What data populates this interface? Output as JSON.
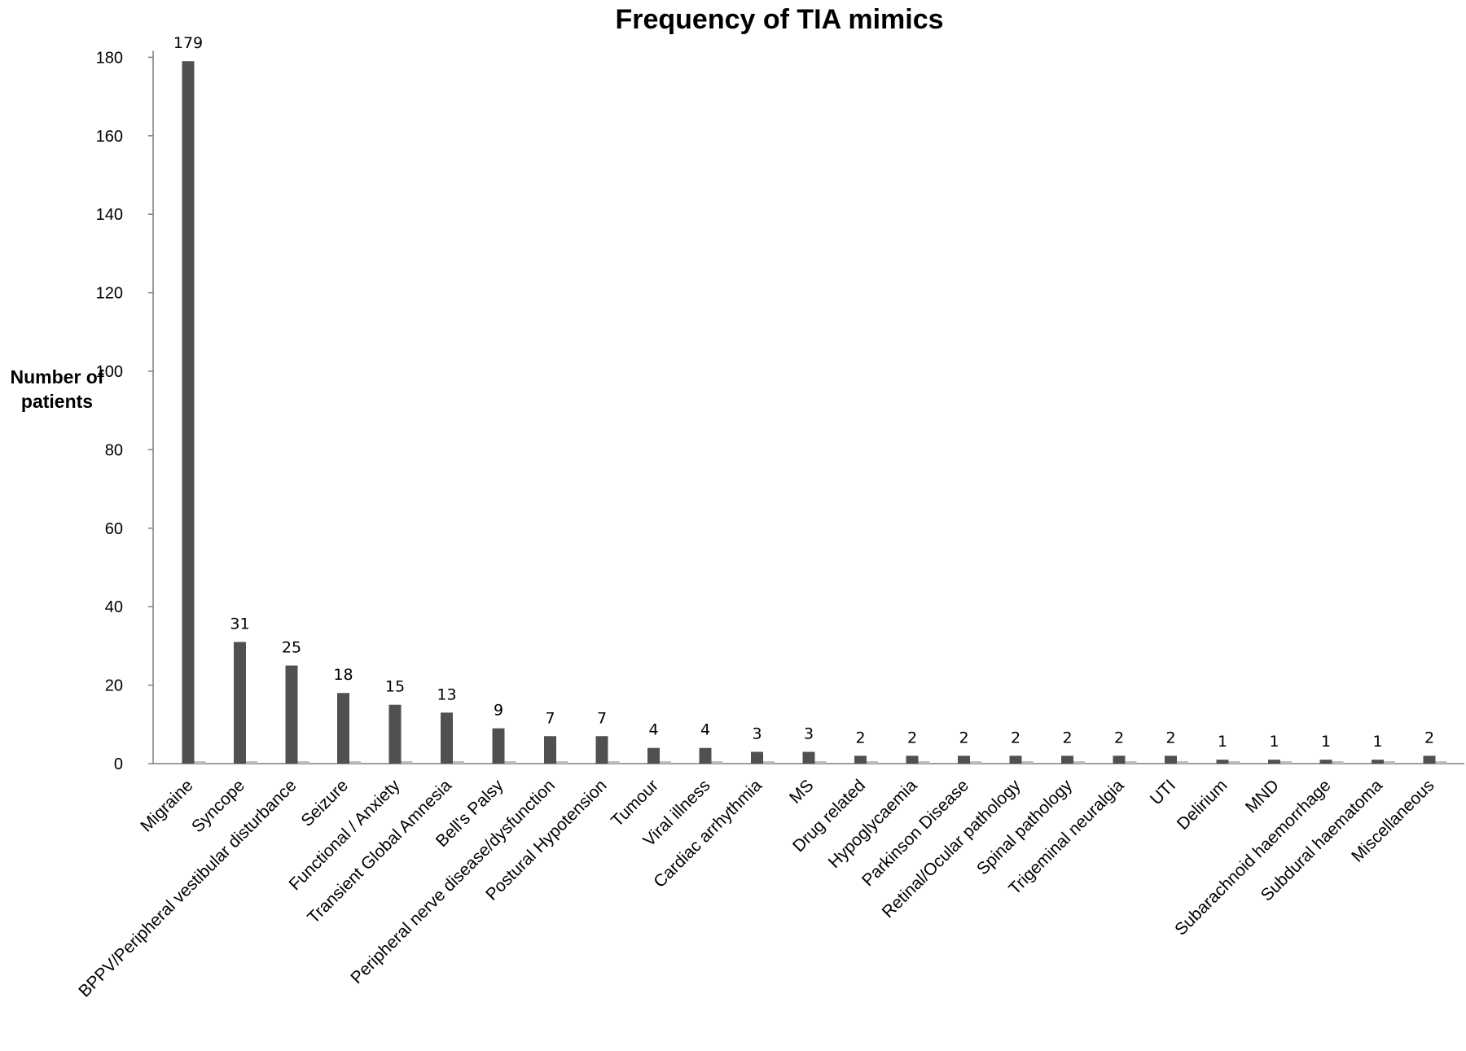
{
  "chart_data": {
    "type": "bar",
    "title": "Frequency of TIA mimics",
    "ylabel_lines": [
      "Number of",
      "patients"
    ],
    "xlabel": "",
    "ylim": [
      0,
      180
    ],
    "yticks": [
      0,
      20,
      40,
      60,
      80,
      100,
      120,
      140,
      160,
      180
    ],
    "grid": false,
    "legend": "none",
    "bar_color": "#505050",
    "categories": [
      "Migraine",
      "Syncope",
      "BPPV/Peripheral vestibular disturbance",
      "Seizure",
      "Functional / Anxiety",
      "Transient Global Amnesia",
      "Bell's Palsy",
      "Peripheral nerve disease/dysfunction",
      "Postural Hypotension",
      "Tumour",
      "Viral illness",
      "Cardiac arrhythmia",
      "MS",
      "Drug related",
      "Hypoglycaemia",
      "Parkinson Disease",
      "Retinal/Ocular pathology",
      "Spinal pathology",
      "Trigeminal  neuralgia",
      "UTI",
      "Delirium",
      "MND",
      "Subarachnoid haemorrhage",
      "Subdural haematoma",
      "Miscellaneous"
    ],
    "values": [
      179,
      31,
      25,
      18,
      15,
      13,
      9,
      7,
      7,
      4,
      4,
      3,
      3,
      2,
      2,
      2,
      2,
      2,
      2,
      2,
      1,
      1,
      1,
      1,
      2
    ],
    "data_labels": [
      "179",
      "31",
      "25",
      "18",
      "15",
      "13",
      "9",
      "7",
      "7",
      "4",
      "4",
      "3",
      "3",
      "2",
      "2",
      "2",
      "2",
      "2",
      "2",
      "2",
      "1",
      "1",
      "1",
      "1",
      "2"
    ]
  }
}
